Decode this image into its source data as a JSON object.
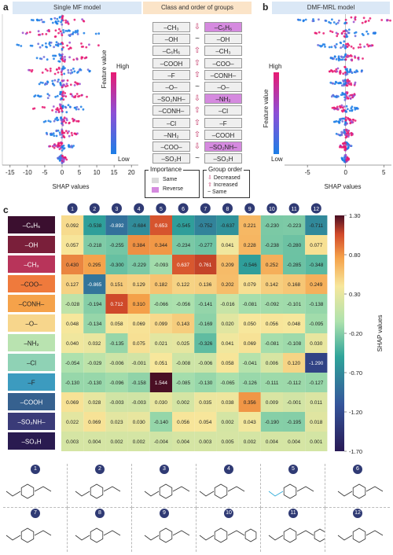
{
  "panels": {
    "a": {
      "letter": "a",
      "title": "Single MF model",
      "xlabel": "SHAP values",
      "xticks": [
        "-15",
        "-10",
        "-5",
        "0",
        "5",
        "10",
        "15",
        "20"
      ],
      "colorbar": {
        "label": "Feature value",
        "high": "High",
        "low": "Low"
      }
    },
    "b": {
      "letter": "b",
      "title": "DMF-MRL model",
      "xlabel": "SHAP values",
      "xticks": [
        "-5",
        "0",
        "5"
      ],
      "colorbar": {
        "label": "Feature value",
        "high": "High",
        "low": "Low"
      }
    },
    "mid": {
      "title": "Class and order of groups",
      "left_groups": [
        "–CH₃",
        "–OH",
        "–C₆H₆",
        "–COOH",
        "–F",
        "–O–",
        "–SO₂NH–",
        "–CONH–",
        "–Cl",
        "–NH₂",
        "–COO–",
        "–SO₃H"
      ],
      "right_groups": [
        "–C₆H₆",
        "–OH",
        "–CH₃",
        "–COO–",
        "–CONH–",
        "–O–",
        "–NH₂",
        "–Cl",
        "–F",
        "–COOH",
        "–SO₂NH–",
        "–SO₃H"
      ],
      "right_highlight": [
        true,
        false,
        false,
        false,
        false,
        false,
        true,
        false,
        false,
        false,
        true,
        false
      ],
      "arrows": [
        "⇩",
        "~",
        "⇧",
        "⇧",
        "⇧",
        "~",
        "⇩",
        "⇧",
        "⇧",
        "⇧",
        "⇩",
        "~"
      ],
      "importance_title": "Importance",
      "same_label": "Same",
      "reverse_label": "Reverse",
      "order_title": "Group order",
      "decreased_label": "Decreased",
      "increased_label": "Increased",
      "same_order_label": "Same"
    },
    "c": {
      "letter": "c"
    }
  },
  "chart_data": [
    {
      "type": "scatter",
      "title": "Single MF model",
      "xlabel": "SHAP values",
      "xlim": [
        -17,
        22
      ],
      "features_top_to_bottom": [
        "–CH₃",
        "–OH",
        "–C₆H₆",
        "–COOH",
        "–F",
        "–O–",
        "–SO₂NH–",
        "–CONH–",
        "–Cl",
        "–NH₂",
        "–COO–",
        "–SO₃H"
      ]
    },
    {
      "type": "scatter",
      "title": "DMF-MRL model",
      "xlabel": "SHAP values",
      "xlim": [
        -8,
        6
      ],
      "features_top_to_bottom": [
        "–C₆H₆",
        "–OH",
        "–CH₃",
        "–COO–",
        "–CONH–",
        "–O–",
        "–NH₂",
        "–Cl",
        "–F",
        "–COOH",
        "–SO₂NH–",
        "–SO₃H"
      ]
    },
    {
      "type": "heatmap",
      "rows": [
        "–C₆H₆",
        "–OH",
        "–CH₃",
        "–COO–",
        "–CONH–",
        "–O–",
        "–NH₂",
        "–Cl",
        "–F",
        "–COOH",
        "–SO₂NH–",
        "–SO₃H"
      ],
      "columns": [
        "1",
        "2",
        "3",
        "4",
        "5",
        "6",
        "7",
        "8",
        "9",
        "10",
        "11",
        "12"
      ],
      "colorbar_label": "SHAP values",
      "colorbar_ticks": [
        "1.30",
        "0.80",
        "0.30",
        "-0.20",
        "-0.70",
        "-1.20",
        "-1.70"
      ],
      "vmin": -1.7,
      "vmax": 1.3,
      "values": [
        [
          "0.092",
          "-0.538",
          "-0.892",
          "-0.684",
          "0.653",
          "-0.545",
          "-0.752",
          "-0.637",
          "0.221",
          "-0.230",
          "-0.223",
          "-0.711"
        ],
        [
          "0.057",
          "-0.218",
          "-0.255",
          "0.384",
          "0.344",
          "-0.234",
          "-0.277",
          "0.041",
          "0.228",
          "-0.238",
          "-0.280",
          "0.077"
        ],
        [
          "0.430",
          "0.295",
          "-0.300",
          "-0.229",
          "-0.093",
          "0.637",
          "0.761",
          "0.209",
          "-0.546",
          "0.252",
          "-0.285",
          "-0.348"
        ],
        [
          "0.127",
          "-0.865",
          "0.151",
          "0.129",
          "0.182",
          "0.122",
          "0.136",
          "0.202",
          "0.079",
          "0.142",
          "0.168",
          "0.249"
        ],
        [
          "-0.028",
          "-0.194",
          "0.712",
          "0.310",
          "-0.066",
          "-0.056",
          "-0.141",
          "-0.016",
          "-0.081",
          "-0.092",
          "-0.101",
          "-0.138"
        ],
        [
          "0.048",
          "-0.134",
          "0.058",
          "0.069",
          "0.099",
          "0.143",
          "-0.169",
          "0.020",
          "0.050",
          "0.056",
          "0.048",
          "-0.095"
        ],
        [
          "0.040",
          "0.032",
          "-0.135",
          "0.075",
          "0.021",
          "0.025",
          "-0.326",
          "0.041",
          "0.069",
          "-0.081",
          "-0.108",
          "0.030"
        ],
        [
          "-0.054",
          "-0.029",
          "-0.006",
          "-0.001",
          "0.051",
          "-0.008",
          "-0.006",
          "0.058",
          "-0.041",
          "0.006",
          "0.120",
          "-1.290"
        ],
        [
          "-0.130",
          "-0.130",
          "-0.096",
          "-0.158",
          "1.544",
          "-0.085",
          "-0.130",
          "-0.065",
          "-0.126",
          "-0.111",
          "-0.112",
          "-0.127"
        ],
        [
          "0.069",
          "0.028",
          "-0.003",
          "-0.003",
          "0.030",
          "0.002",
          "0.035",
          "0.038",
          "0.356",
          "0.009",
          "-0.001",
          "0.011"
        ],
        [
          "0.022",
          "0.069",
          "0.023",
          "0.030",
          "-0.140",
          "0.056",
          "0.054",
          "0.002",
          "0.043",
          "-0.190",
          "-0.195",
          "0.018"
        ],
        [
          "0.003",
          "0.004",
          "0.002",
          "0.002",
          "-0.004",
          "0.004",
          "0.003",
          "0.005",
          "0.002",
          "0.004",
          "0.004",
          "0.001"
        ]
      ]
    }
  ],
  "molecules": {
    "numbers": [
      "1",
      "2",
      "3",
      "4",
      "5",
      "6",
      "7",
      "8",
      "9",
      "10",
      "11",
      "12"
    ]
  }
}
